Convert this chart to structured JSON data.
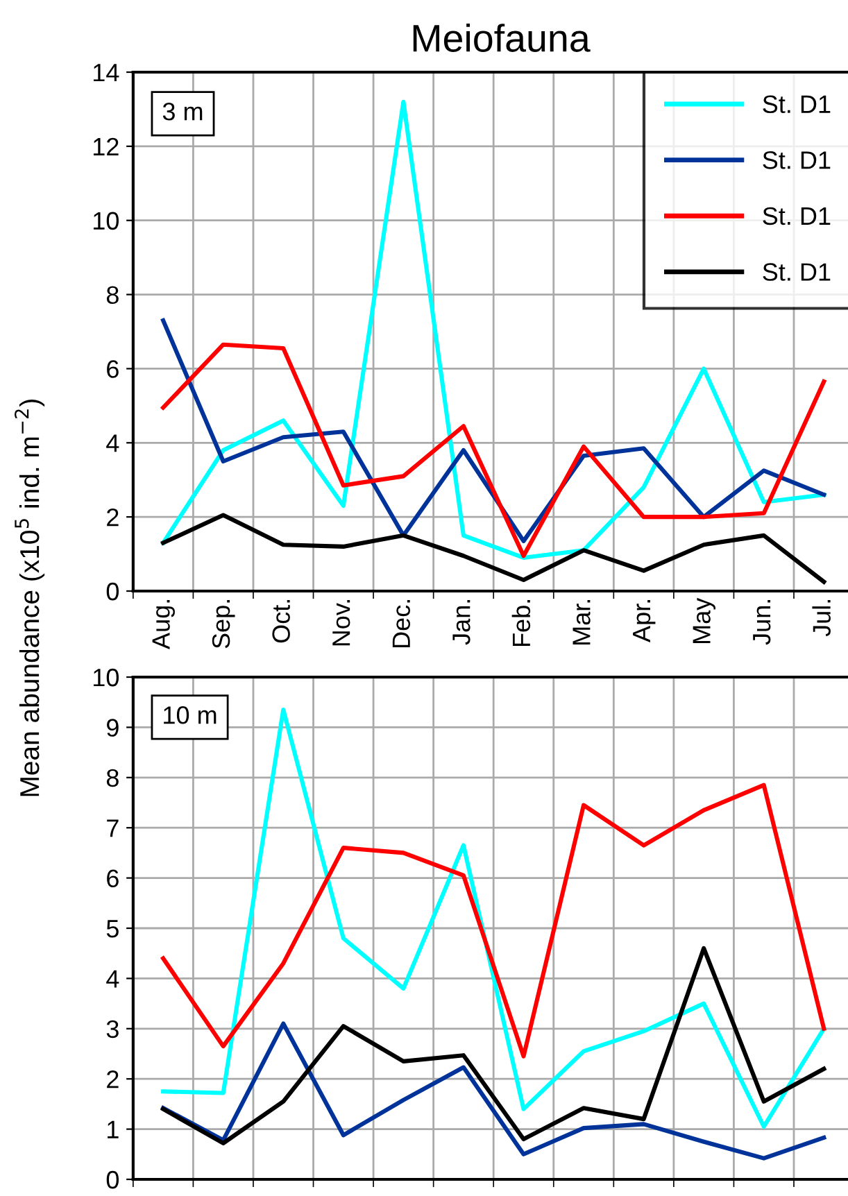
{
  "chart_data": [
    {
      "type": "line",
      "title": "Meiofauna",
      "ylabel": "Mean abundance (x10$^{5}$ ind. m$^{−2}$)",
      "annotations": [
        "3 m"
      ],
      "categories": [
        "Aug.",
        "Sep.",
        "Oct.",
        "Nov.",
        "Dec.",
        "Jan.",
        "Feb.",
        "Mar.",
        "Apr.",
        "May",
        "Jun.",
        "Jul."
      ],
      "ylim": [
        0,
        14
      ],
      "yticks": [
        0,
        2,
        4,
        6,
        8,
        10,
        12,
        14
      ],
      "grid": true,
      "legend": "top right",
      "marker": "none",
      "line_style": "solid",
      "series": [
        {
          "name": "St. D1",
          "color": "#00ffff",
          "values": [
            1.3,
            3.8,
            4.6,
            2.3,
            13.2,
            1.5,
            0.9,
            1.1,
            2.8,
            6.0,
            2.4,
            2.6
          ]
        },
        {
          "name": "St. D1",
          "color": "#003399",
          "values": [
            7.3,
            3.5,
            4.15,
            4.3,
            1.5,
            3.8,
            1.35,
            3.65,
            3.85,
            2.0,
            3.25,
            2.6
          ]
        },
        {
          "name": "St. D1",
          "color": "#ff0000",
          "values": [
            4.95,
            6.65,
            6.55,
            2.85,
            3.1,
            4.45,
            0.95,
            3.9,
            2.0,
            2.0,
            2.1,
            5.65
          ]
        },
        {
          "name": "St. D1",
          "color": "#000000",
          "values": [
            1.3,
            2.05,
            1.25,
            1.2,
            1.5,
            0.95,
            0.3,
            1.1,
            0.55,
            1.25,
            1.5,
            0.25
          ]
        }
      ]
    },
    {
      "type": "line",
      "annotations": [
        "10 m"
      ],
      "categories": [
        null,
        null,
        null,
        null,
        null,
        null,
        null,
        null,
        null,
        null,
        null,
        null
      ],
      "ylim": [
        0,
        10
      ],
      "yticks": [
        0,
        1,
        2,
        3,
        4,
        5,
        6,
        7,
        8,
        9,
        10
      ],
      "grid": true,
      "tick_labels": "y",
      "marker": "none",
      "line_style": "solid",
      "series": [
        {
          "color": "#00ffff",
          "values": [
            1.75,
            1.72,
            9.35,
            4.8,
            3.8,
            6.65,
            1.4,
            2.55,
            2.95,
            3.5,
            1.05,
            3.0
          ]
        },
        {
          "color": "#003399",
          "values": [
            1.42,
            0.78,
            3.1,
            0.88,
            1.58,
            2.23,
            0.5,
            1.02,
            1.1,
            0.75,
            0.42,
            0.83
          ]
        },
        {
          "color": "#ff0000",
          "values": [
            4.4,
            2.65,
            4.3,
            6.6,
            6.5,
            6.05,
            2.45,
            7.45,
            6.65,
            7.35,
            7.85,
            3.0
          ]
        },
        {
          "color": "#000000",
          "values": [
            1.4,
            0.72,
            1.55,
            3.05,
            2.35,
            2.47,
            0.8,
            1.42,
            1.2,
            4.6,
            1.55,
            2.2
          ]
        }
      ]
    }
  ]
}
